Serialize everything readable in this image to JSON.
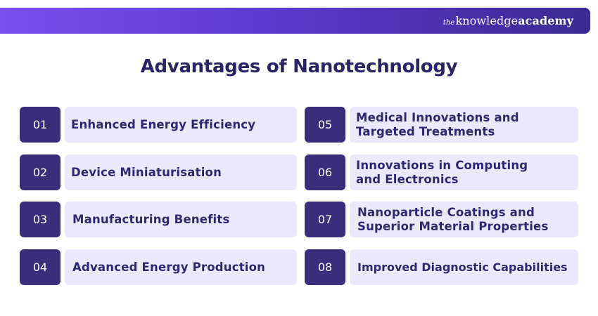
{
  "brand": {
    "prefix": "the",
    "normal": "knowledge",
    "bold": "academy"
  },
  "title": "Advantages of Nanotechnology",
  "items": [
    {
      "num": "01",
      "lines": [
        "Enhanced Energy Efficiency"
      ]
    },
    {
      "num": "02",
      "lines": [
        "Device Miniaturisation"
      ]
    },
    {
      "num": "03",
      "lines": [
        "Manufacturing Benefits"
      ]
    },
    {
      "num": "04",
      "lines": [
        "Advanced Energy Production"
      ]
    },
    {
      "num": "05",
      "lines": [
        "Medical Innovations and",
        "Targeted Treatments"
      ]
    },
    {
      "num": "06",
      "lines": [
        "Innovations in Computing",
        "and Electronics"
      ]
    },
    {
      "num": "07",
      "lines": [
        "Nanoparticle Coatings and",
        "Superior Material Properties"
      ]
    },
    {
      "num": "08",
      "lines": [
        "Improved Diagnostic Capabilities"
      ]
    }
  ],
  "colors": {
    "banner_start": "#7a4ff0",
    "banner_end": "#3b2a92",
    "number_box": "#3a2d7c",
    "label_box": "#ebe8fc",
    "text_dark": "#2e2870"
  }
}
